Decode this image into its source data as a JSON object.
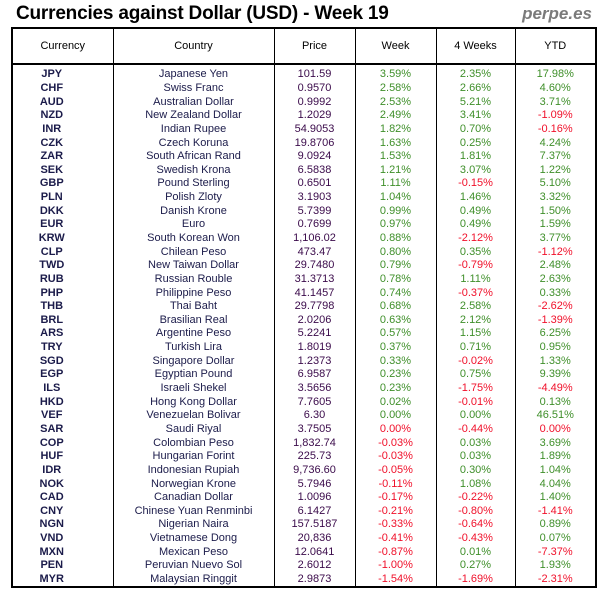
{
  "title": "Currencies against Dollar (USD) - Week 19",
  "brand": "perpe.es",
  "headers": [
    "Currency",
    "Country",
    "Price",
    "Week",
    "4 Weeks",
    "YTD"
  ],
  "rows": [
    [
      "JPY",
      "Japanese Yen",
      "101.59",
      "3.59%",
      "2.35%",
      "17.98%",
      "ggg"
    ],
    [
      "CHF",
      "Swiss Franc",
      "0.9570",
      "2.58%",
      "2.66%",
      "4.60%",
      "ggg"
    ],
    [
      "AUD",
      "Australian Dollar",
      "0.9992",
      "2.53%",
      "5.21%",
      "3.71%",
      "ggg"
    ],
    [
      "NZD",
      "New Zealand Dollar",
      "1.2029",
      "2.49%",
      "3.41%",
      "-1.09%",
      "ggr"
    ],
    [
      "INR",
      "Indian Rupee",
      "54.9053",
      "1.82%",
      "0.70%",
      "-0.16%",
      "ggr"
    ],
    [
      "CZK",
      "Czech Koruna",
      "19.8706",
      "1.63%",
      "0.25%",
      "4.24%",
      "ggg"
    ],
    [
      "ZAR",
      "South African Rand",
      "9.0924",
      "1.53%",
      "1.81%",
      "7.37%",
      "ggg"
    ],
    [
      "SEK",
      "Swedish Krona",
      "6.5838",
      "1.21%",
      "3.07%",
      "1.22%",
      "ggg"
    ],
    [
      "GBP",
      "Pound Sterling",
      "0.6501",
      "1.11%",
      "-0.15%",
      "5.10%",
      "grg"
    ],
    [
      "PLN",
      "Polish Zloty",
      "3.1903",
      "1.04%",
      "1.46%",
      "3.32%",
      "ggg"
    ],
    [
      "DKK",
      "Danish Krone",
      "5.7399",
      "0.99%",
      "0.49%",
      "1.50%",
      "ggg"
    ],
    [
      "EUR",
      "Euro",
      "0.7699",
      "0.97%",
      "0.49%",
      "1.59%",
      "ggg"
    ],
    [
      "KRW",
      "South Korean Won",
      "1,106.02",
      "0.88%",
      "-2.12%",
      "3.77%",
      "grg"
    ],
    [
      "CLP",
      "Chilean Peso",
      "473.47",
      "0.80%",
      "0.35%",
      "-1.12%",
      "ggr"
    ],
    [
      "TWD",
      "New Taiwan Dollar",
      "29.7480",
      "0.79%",
      "-0.79%",
      "2.48%",
      "grg"
    ],
    [
      "RUB",
      "Russian Rouble",
      "31.3713",
      "0.78%",
      "1.11%",
      "2.63%",
      "ggg"
    ],
    [
      "PHP",
      "Philippine Peso",
      "41.1457",
      "0.74%",
      "-0.37%",
      "0.33%",
      "grg"
    ],
    [
      "THB",
      "Thai Baht",
      "29.7798",
      "0.68%",
      "2.58%",
      "-2.62%",
      "ggr"
    ],
    [
      "BRL",
      "Brasilian Real",
      "2.0206",
      "0.63%",
      "2.12%",
      "-1.39%",
      "ggr"
    ],
    [
      "ARS",
      "Argentine Peso",
      "5.2241",
      "0.57%",
      "1.15%",
      "6.25%",
      "ggg"
    ],
    [
      "TRY",
      "Turkish Lira",
      "1.8019",
      "0.37%",
      "0.71%",
      "0.95%",
      "ggg"
    ],
    [
      "SGD",
      "Singapore Dollar",
      "1.2373",
      "0.33%",
      "-0.02%",
      "1.33%",
      "grg"
    ],
    [
      "EGP",
      "Egyptian Pound",
      "6.9587",
      "0.23%",
      "0.75%",
      "9.39%",
      "ggg"
    ],
    [
      "ILS",
      "Israeli Shekel",
      "3.5656",
      "0.23%",
      "-1.75%",
      "-4.49%",
      "grr"
    ],
    [
      "HKD",
      "Hong Kong Dollar",
      "7.7605",
      "0.02%",
      "-0.01%",
      "0.13%",
      "grg"
    ],
    [
      "VEF",
      "Venezuelan Bolivar",
      "6.30",
      "0.00%",
      "0.00%",
      "46.51%",
      "ggg"
    ],
    [
      "SAR",
      "Saudi Riyal",
      "3.7505",
      "0.00%",
      "-0.44%",
      "0.00%",
      "rrr"
    ],
    [
      "COP",
      "Colombian Peso",
      "1,832.74",
      "-0.03%",
      "0.03%",
      "3.69%",
      "rgg"
    ],
    [
      "HUF",
      "Hungarian Forint",
      "225.73",
      "-0.03%",
      "0.03%",
      "1.89%",
      "rgg"
    ],
    [
      "IDR",
      "Indonesian Rupiah",
      "9,736.60",
      "-0.05%",
      "0.30%",
      "1.04%",
      "rgg"
    ],
    [
      "NOK",
      "Norwegian Krone",
      "5.7946",
      "-0.11%",
      "1.08%",
      "4.04%",
      "rgg"
    ],
    [
      "CAD",
      "Canadian Dollar",
      "1.0096",
      "-0.17%",
      "-0.22%",
      "1.40%",
      "rrg"
    ],
    [
      "CNY",
      "Chinese Yuan Renminbi",
      "6.1427",
      "-0.21%",
      "-0.80%",
      "-1.41%",
      "rrr"
    ],
    [
      "NGN",
      "Nigerian Naira",
      "157.5187",
      "-0.33%",
      "-0.64%",
      "0.89%",
      "rrg"
    ],
    [
      "VND",
      "Vietnamese Dong",
      "20,836",
      "-0.41%",
      "-0.43%",
      "0.07%",
      "rrg"
    ],
    [
      "MXN",
      "Mexican Peso",
      "12.0641",
      "-0.87%",
      "0.01%",
      "-7.37%",
      "rgr"
    ],
    [
      "PEN",
      "Peruvian Nuevo Sol",
      "2.6012",
      "-1.00%",
      "0.27%",
      "1.93%",
      "rgg"
    ],
    [
      "MYR",
      "Malaysian Ringgit",
      "2.9873",
      "-1.54%",
      "-1.69%",
      "-2.31%",
      "rrr"
    ]
  ]
}
